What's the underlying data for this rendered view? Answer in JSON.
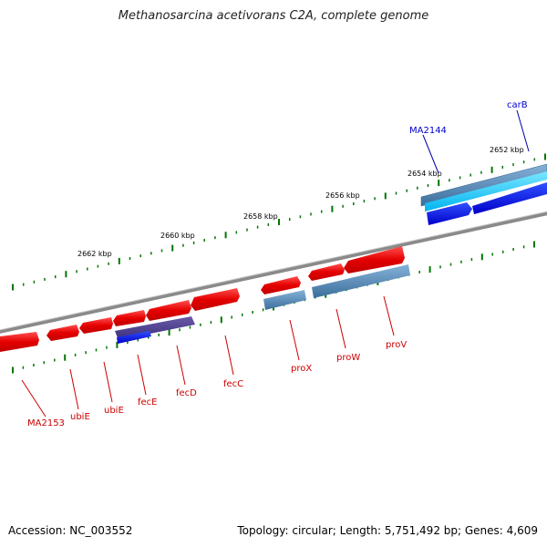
{
  "title": "Methanosarcina acetivorans C2A, complete genome",
  "footer": {
    "accession": "Accession: NC_003552",
    "info": "Topology: circular; Length: 5,751,492 bp; Genes: 4,609"
  },
  "scale_labels": [
    "2652 kbp",
    "2654 kbp",
    "2656 kbp",
    "2658 kbp",
    "2660 kbp",
    "2662 kbp"
  ],
  "gene_labels_top": [
    "MA2144",
    "carB"
  ],
  "gene_labels_bottom": [
    "MA2153",
    "ubiE",
    "ubiE",
    "fecE",
    "fecD",
    "fecC",
    "proX",
    "proW",
    "proV"
  ],
  "colors": {
    "forward_gene": "#e40000",
    "reverse_gene_dark": "#0000e8",
    "reverse_gene_light": "#00c8ff",
    "steel_gene": "#4682b4",
    "backbone": "#888888",
    "tick": "#007700",
    "label_red": "#cc0000",
    "label_blue": "#0000cc"
  }
}
